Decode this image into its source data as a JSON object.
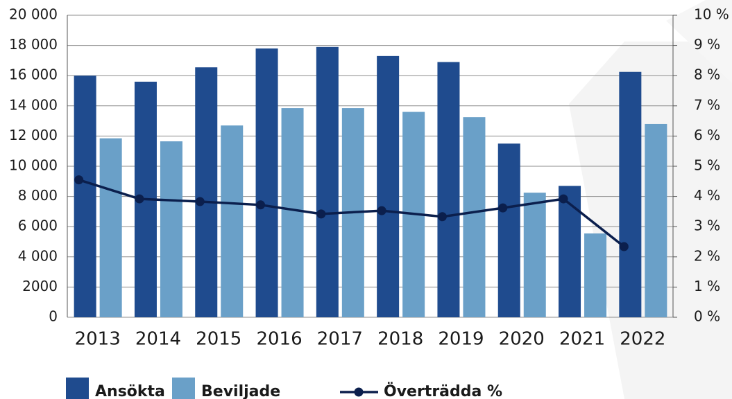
{
  "chart_data": {
    "type": "bar",
    "categories": [
      "2013",
      "2014",
      "2015",
      "2016",
      "2017",
      "2018",
      "2019",
      "2020",
      "2021",
      "2022"
    ],
    "series": [
      {
        "name": "Ansökta",
        "color": "#1f4b8e",
        "values": [
          16000,
          15600,
          16550,
          17800,
          17900,
          17300,
          16900,
          11500,
          8700,
          16250
        ]
      },
      {
        "name": "Beviljade",
        "color": "#6aa0c8",
        "values": [
          11850,
          11650,
          12700,
          13850,
          13850,
          13600,
          13250,
          8250,
          5550,
          12800
        ]
      },
      {
        "name": "Överträdda %",
        "color": "#0b1f4d",
        "type": "line",
        "axis": "y2",
        "values": [
          4.55,
          3.92,
          3.83,
          3.72,
          3.42,
          3.53,
          3.33,
          3.62,
          3.92,
          2.34
        ]
      }
    ],
    "ylim": [
      0,
      20000
    ],
    "yticks": [
      0,
      2000,
      {
        "value": 4000,
        "label": "4 000"
      },
      {
        "value": 6000,
        "label": "6 000"
      },
      {
        "value": 8000,
        "label": "8 000"
      },
      {
        "value": 10000,
        "label": "10 000"
      },
      {
        "value": 12000,
        "label": "12 000"
      },
      {
        "value": 14000,
        "label": "14 000"
      },
      {
        "value": 16000,
        "label": "16 000"
      },
      {
        "value": 18000,
        "label": "18 000"
      },
      {
        "value": 20000,
        "label": "20 000"
      }
    ],
    "y2lim": [
      0,
      10
    ],
    "y2ticks": [
      {
        "value": 0,
        "label": "0 %"
      },
      {
        "value": 1,
        "label": "1 %"
      },
      {
        "value": 2,
        "label": "2 %"
      },
      {
        "value": 3,
        "label": "3 %"
      },
      {
        "value": 4,
        "label": "4 %"
      },
      {
        "value": 5,
        "label": "5 %"
      },
      {
        "value": 6,
        "label": "6 %"
      },
      {
        "value": 7,
        "label": "7 %"
      },
      {
        "value": 8,
        "label": "8 %"
      },
      {
        "value": 9,
        "label": "9 %"
      },
      {
        "value": 10,
        "label": "10 %"
      }
    ],
    "grid": true,
    "legend": "bottom"
  }
}
